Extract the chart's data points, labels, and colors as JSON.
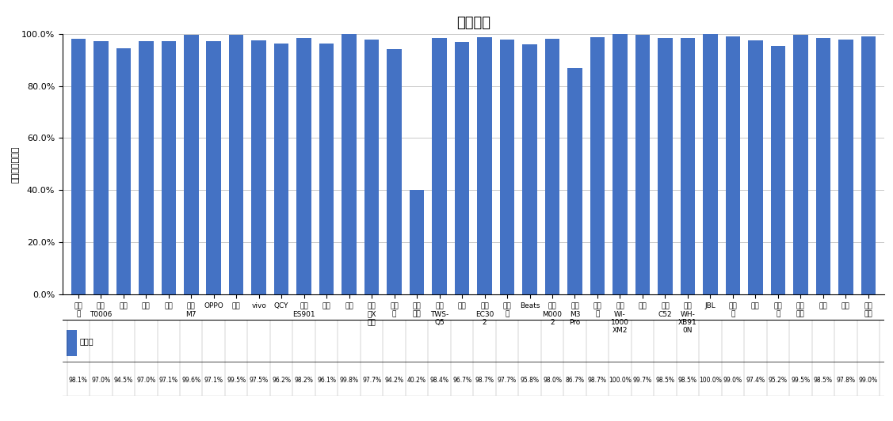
{
  "title": "通话降噪",
  "ylabel": "主观测试正确率",
  "categories": [
    "漫步\n者",
    "华为\nT0006",
    "苹果",
    "小米",
    "倍思",
    "酷狗\nM7",
    "OPPO",
    "荣耀",
    "vivo",
    "QCY",
    "万魔\nES901",
    "小度",
    "雷蛇",
    "漫步\n者X\n行心",
    "潮智\n能",
    "科大\n讯飞",
    "纽曼\nTWS-\nQ5",
    "三星",
    "万魔\nEC30\n2",
    "搜波\n明",
    "Beats",
    "华为\nM000\n2",
    "酷狗\nM3\nPro",
    "爱国\n者",
    "索尼\nWI-\n1000\nXM2",
    "山水",
    "纽曼\nC52",
    "索尼\nWH-\nXB91\n0N",
    "JBL",
    "飞利\n浦",
    "联想",
    "铁三\n角",
    "森海\n塞尔",
    "博士",
    "索爱",
    "西伯\n利亚"
  ],
  "values": [
    98.1,
    97.0,
    94.5,
    97.0,
    97.1,
    99.6,
    97.1,
    99.5,
    97.5,
    96.2,
    98.2,
    96.1,
    99.8,
    97.7,
    94.2,
    40.2,
    98.4,
    96.7,
    98.7,
    97.7,
    95.8,
    98.0,
    86.7,
    98.7,
    100.0,
    99.7,
    98.5,
    98.5,
    100.0,
    99.0,
    97.4,
    95.2,
    99.5,
    98.5,
    97.8,
    99.0
  ],
  "bar_color": "#4472C4",
  "legend_label": "正确率",
  "ylim": [
    0.0,
    1.0
  ],
  "yticks": [
    0.0,
    0.2,
    0.4,
    0.6,
    0.8,
    1.0
  ],
  "ytick_labels": [
    "0.0%",
    "20.0%",
    "40.0%",
    "60.0%",
    "80.0%",
    "100.0%"
  ],
  "grid_color": "#c0c0c0",
  "title_fontsize": 13,
  "ylabel_fontsize": 8,
  "xtick_fontsize": 6.5,
  "ytick_fontsize": 8,
  "value_fontsize": 5.5,
  "legend_fontsize": 7
}
